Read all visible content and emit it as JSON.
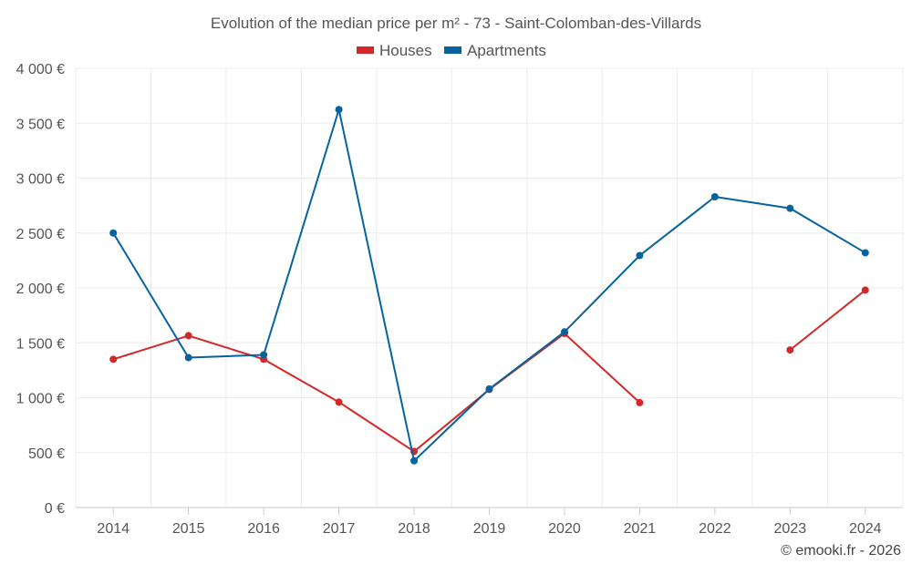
{
  "chart_data": {
    "type": "line",
    "title": "Evolution of the median price per m² - 73 - Saint-Colomban-des-Villards",
    "categories": [
      "2014",
      "2015",
      "2016",
      "2017",
      "2018",
      "2019",
      "2020",
      "2021",
      "2022",
      "2023",
      "2024"
    ],
    "y_ticks": [
      "0 €",
      "500 €",
      "1 000 €",
      "1 500 €",
      "2 000 €",
      "2 500 €",
      "3 000 €",
      "3 500 €",
      "4 000 €"
    ],
    "ylim": [
      0,
      4000
    ],
    "grid": true,
    "legend_position": "top-center",
    "series": [
      {
        "name": "Houses",
        "color": "#d62728",
        "values": [
          1350,
          1565,
          1350,
          960,
          510,
          1075,
          1585,
          955,
          null,
          1435,
          1980
        ]
      },
      {
        "name": "Apartments",
        "color": "#06639e",
        "values": [
          2500,
          1365,
          1390,
          3625,
          425,
          1080,
          1600,
          2295,
          2830,
          2725,
          2320
        ]
      }
    ]
  },
  "credit": "© emooki.fr - 2026"
}
